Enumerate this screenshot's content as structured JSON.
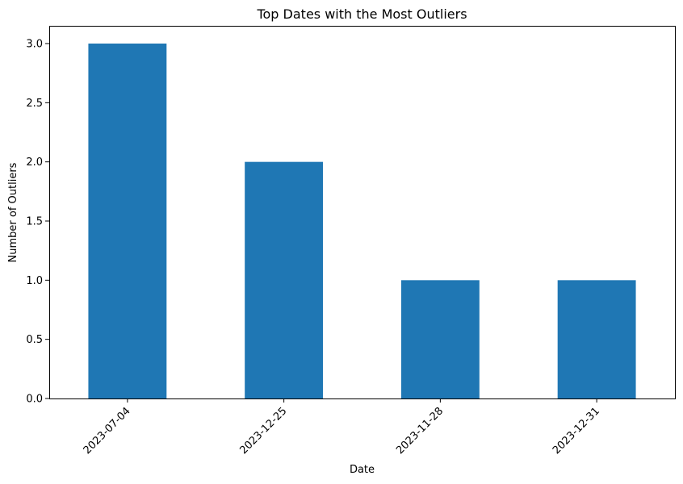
{
  "chart_data": {
    "type": "bar",
    "title": "Top Dates with the Most Outliers",
    "xlabel": "Date",
    "ylabel": "Number of Outliers",
    "categories": [
      "2023-07-04",
      "2023-12-25",
      "2023-11-28",
      "2023-12-31"
    ],
    "values": [
      3,
      2,
      1,
      1
    ],
    "ylim": [
      0,
      3.15
    ],
    "yticks": [
      0.0,
      0.5,
      1.0,
      1.5,
      2.0,
      2.5,
      3.0
    ],
    "ytick_labels": [
      "0.0",
      "0.5",
      "1.0",
      "1.5",
      "2.0",
      "2.5",
      "3.0"
    ],
    "bar_color": "#1f77b4",
    "grid": false,
    "legend": "none"
  }
}
